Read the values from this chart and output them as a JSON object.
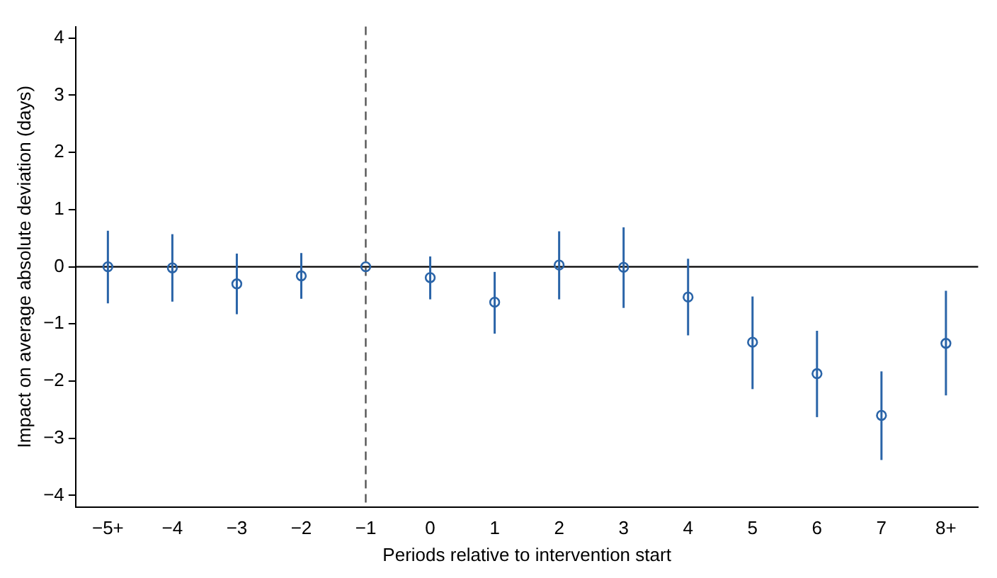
{
  "chart_data": {
    "type": "scatter",
    "xlabel": "Periods relative to intervention start",
    "ylabel": "Impact on average absolute deviation (days)",
    "categories": [
      "−5+",
      "−4",
      "−3",
      "−2",
      "−1",
      "0",
      "1",
      "2",
      "3",
      "4",
      "5",
      "6",
      "7",
      "8+"
    ],
    "series": [
      {
        "color": "#2a64a8",
        "values": [
          0,
          -0.02,
          -0.3,
          -0.16,
          0,
          -0.19,
          -0.62,
          0.03,
          -0.01,
          -0.53,
          -1.32,
          -1.87,
          -2.6,
          -1.34
        ],
        "errors": [
          [
            -0.64,
            0.63
          ],
          [
            -0.61,
            0.57
          ],
          [
            -0.83,
            0.23
          ],
          [
            -0.56,
            0.24
          ],
          null,
          [
            -0.57,
            0.18
          ],
          [
            -1.17,
            -0.09
          ],
          [
            -0.57,
            0.62
          ],
          [
            -0.72,
            0.69
          ],
          [
            -1.2,
            0.14
          ],
          [
            -2.14,
            -0.52
          ],
          [
            -2.63,
            -1.12
          ],
          [
            -3.38,
            -1.83
          ],
          [
            -2.25,
            -0.42
          ]
        ]
      }
    ],
    "ylim": [
      -4.2,
      4.2
    ],
    "yticks": [
      {
        "value": -4,
        "label": "−4"
      },
      {
        "value": -3,
        "label": "−3"
      },
      {
        "value": -2,
        "label": "−2"
      },
      {
        "value": -1,
        "label": "−1"
      },
      0,
      1,
      2,
      3,
      4
    ],
    "ref_lines": [
      {
        "axis": "y",
        "value": 0,
        "color": "#000000",
        "line_style": "solid"
      },
      {
        "axis": "x",
        "value": "−1",
        "color": "#555555",
        "line_style": "dashed"
      }
    ],
    "marker": "circle",
    "grid": false,
    "legend": false
  }
}
